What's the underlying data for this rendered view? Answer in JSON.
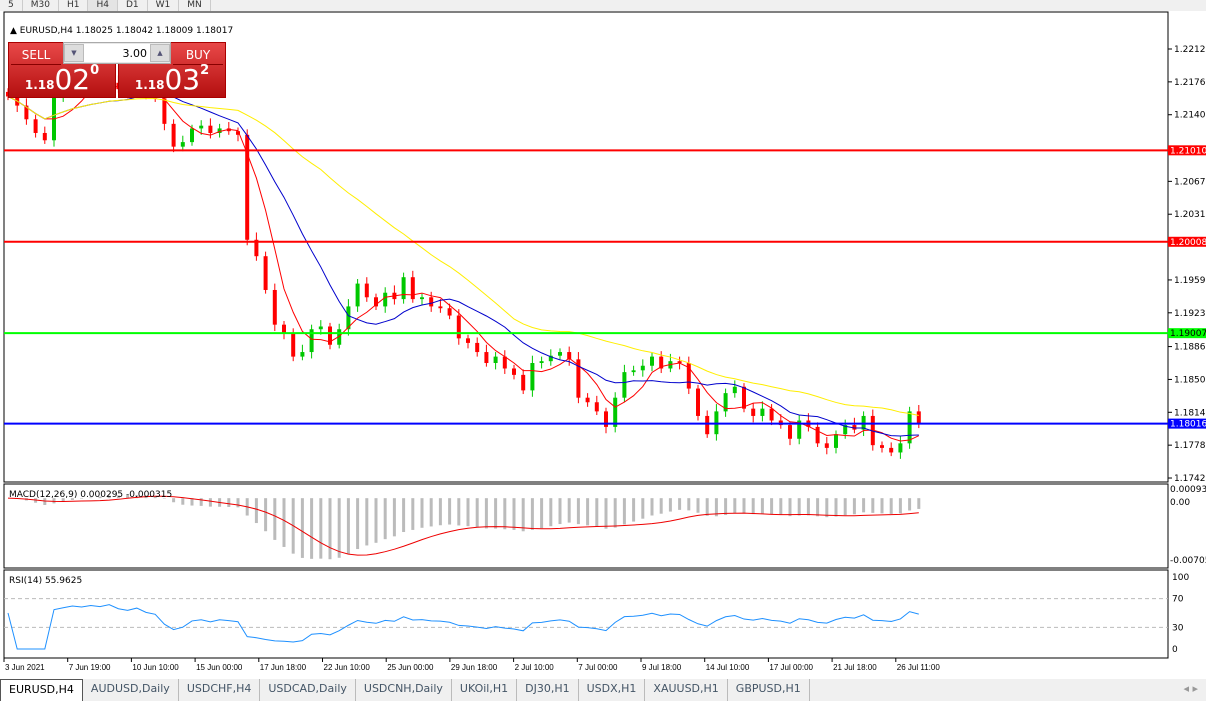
{
  "timeframes": [
    "5",
    "M30",
    "H1",
    "H4",
    "D1",
    "W1",
    "MN"
  ],
  "active_timeframe": "H4",
  "header": {
    "symbol": "EURUSD,H4",
    "ohlc": "1.18025 1.18042 1.18009 1.18017"
  },
  "trade_panel": {
    "sell_label": "SELL",
    "buy_label": "BUY",
    "lot": "3.00",
    "sell_prefix": "1.18",
    "sell_big": "02",
    "sell_sup": "0",
    "buy_prefix": "1.18",
    "buy_big": "03",
    "buy_sup": "2"
  },
  "price_axis": [
    "1.22120",
    "1.21760",
    "1.21400",
    "1.20670",
    "1.20310",
    "1.19590",
    "1.19230",
    "1.18860",
    "1.18500",
    "1.18140",
    "1.17780",
    "1.17420"
  ],
  "hlines": [
    {
      "price": "1.21010",
      "color": "#ff0000"
    },
    {
      "price": "1.20008",
      "color": "#ff0000"
    },
    {
      "price": "1.19007",
      "color": "#00ff00"
    },
    {
      "price": "1.18016",
      "color": "#0000ff"
    }
  ],
  "macd": {
    "label": "MACD(12,26,9) 0.000295 -0.000315",
    "axis_top": "0.00093",
    "axis_zero": "0.00",
    "axis_bottom": "-0.00705"
  },
  "rsi": {
    "label": "RSI(14) 55.9625",
    "axis": [
      "100",
      "70",
      "30",
      "0"
    ]
  },
  "time_axis": [
    "3 Jun 2021",
    "7 Jun 19:00",
    "10 Jun 10:00",
    "15 Jun 00:00",
    "17 Jun 18:00",
    "22 Jun 10:00",
    "25 Jun 00:00",
    "29 Jun 18:00",
    "2 Jul 10:00",
    "7 Jul 00:00",
    "9 Jul 18:00",
    "14 Jul 10:00",
    "17 Jul 00:00",
    "21 Jul 18:00",
    "26 Jul 11:00"
  ],
  "tabs": [
    "EURUSD,H4",
    "AUDUSD,Daily",
    "USDCHF,H4",
    "USDCAD,Daily",
    "USDCNH,Daily",
    "UKOil,H1",
    "DJ30,H1",
    "USDX,H1",
    "XAUUSD,H1",
    "GBPUSD,H1"
  ],
  "active_tab": "EURUSD,H4",
  "chart_data": {
    "type": "candlestick",
    "ylim": [
      1.1742,
      1.2212
    ],
    "closes": [
      1.216,
      1.215,
      1.2135,
      1.212,
      1.2112,
      1.216,
      1.2165,
      1.217,
      1.2168,
      1.2172,
      1.217,
      1.2175,
      1.2168,
      1.2165,
      1.217,
      1.2162,
      1.2158,
      1.213,
      1.2105,
      1.211,
      1.2125,
      1.2128,
      1.212,
      1.2125,
      1.2122,
      1.2118,
      1.2003,
      1.1985,
      1.1948,
      1.191,
      1.19,
      1.1875,
      1.188,
      1.1905,
      1.1908,
      1.1888,
      1.1905,
      1.193,
      1.1955,
      1.194,
      1.193,
      1.1945,
      1.1938,
      1.1962,
      1.1938,
      1.194,
      1.193,
      1.1928,
      1.192,
      1.1895,
      1.189,
      1.188,
      1.1868,
      1.1875,
      1.1862,
      1.1855,
      1.1838,
      1.1868,
      1.187,
      1.1876,
      1.188,
      1.1872,
      1.183,
      1.1825,
      1.1815,
      1.1798,
      1.183,
      1.1858,
      1.186,
      1.1865,
      1.1875,
      1.1862,
      1.187,
      1.1868,
      1.184,
      1.181,
      1.179,
      1.1815,
      1.1835,
      1.1842,
      1.1818,
      1.181,
      1.1818,
      1.1805,
      1.18,
      1.1785,
      1.1805,
      1.1798,
      1.178,
      1.1775,
      1.179,
      1.18,
      1.1795,
      1.181,
      1.1778,
      1.1775,
      1.177,
      1.178,
      1.1815,
      1.18017
    ],
    "up_color": "#00c800",
    "down_color": "#ff0000",
    "ma_colors": [
      "#ff0000",
      "#0000cc",
      "#ffee00"
    ]
  }
}
